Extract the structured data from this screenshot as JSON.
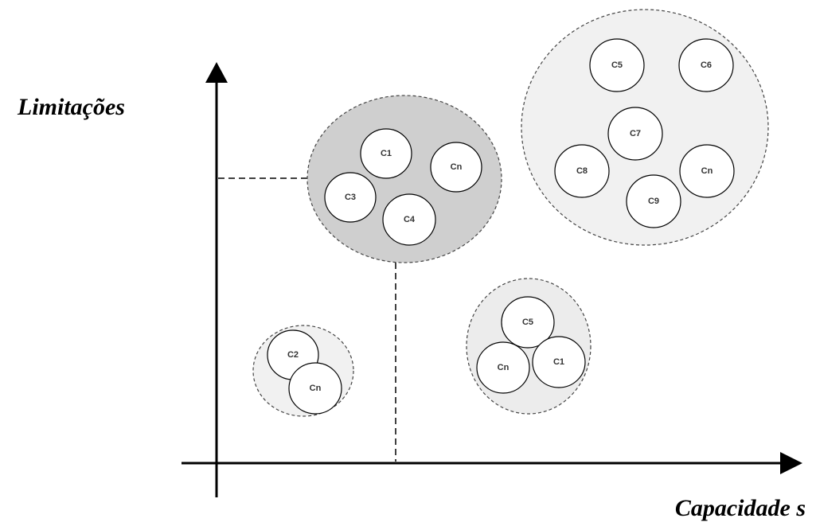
{
  "axes": {
    "y_label": "Limitações",
    "x_label": "Capacidade s"
  },
  "clusters": [
    {
      "nodes": [
        "C1",
        "Cn",
        "C3",
        "C4"
      ]
    },
    {
      "nodes": [
        "C5",
        "C6",
        "C7",
        "C8",
        "Cn",
        "C9"
      ]
    },
    {
      "nodes": [
        "C5",
        "Cn",
        "C1"
      ]
    },
    {
      "nodes": [
        "C2",
        "Cn"
      ]
    }
  ]
}
